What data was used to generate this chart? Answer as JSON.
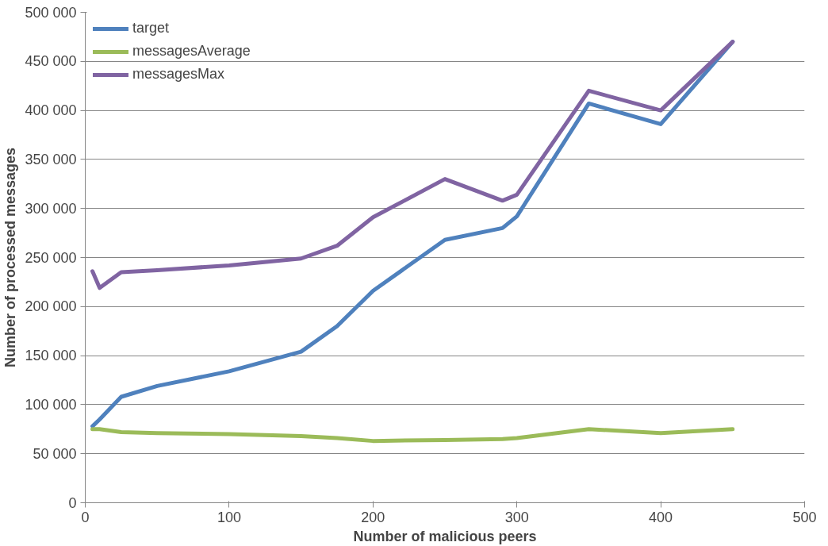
{
  "chart_data": {
    "type": "line",
    "xlabel": "Number of malicious peers",
    "ylabel": "Number of processed messages",
    "x": [
      5,
      10,
      25,
      50,
      100,
      150,
      175,
      200,
      250,
      290,
      300,
      350,
      400,
      450
    ],
    "series": [
      {
        "name": "target",
        "color": "#4f81bd",
        "values": [
          78000,
          85000,
          108000,
          119000,
          134000,
          154000,
          180000,
          216000,
          268000,
          280000,
          292000,
          407000,
          386000,
          470000
        ]
      },
      {
        "name": "messagesAverage",
        "color": "#9bbb59",
        "values": [
          75000,
          75000,
          72000,
          71000,
          70000,
          68000,
          66000,
          63000,
          64000,
          65000,
          66000,
          75000,
          71000,
          75000
        ]
      },
      {
        "name": "messagesMax",
        "color": "#8064a2",
        "values": [
          236000,
          219000,
          235000,
          237000,
          242000,
          249000,
          262000,
          291000,
          330000,
          308000,
          314000,
          420000,
          400000,
          470000
        ]
      }
    ],
    "xlim": [
      0,
      500
    ],
    "xticks": [
      0,
      100,
      200,
      300,
      400,
      500
    ],
    "ylim": [
      0,
      500000
    ],
    "yticks": [
      0,
      {
        "value": 50000,
        "label": "50 000"
      },
      {
        "value": 100000,
        "label": "100 000"
      },
      {
        "value": 150000,
        "label": "150 000"
      },
      {
        "value": 200000,
        "label": "200 000"
      },
      {
        "value": 250000,
        "label": "250 000"
      },
      {
        "value": 300000,
        "label": "300 000"
      },
      {
        "value": 350000,
        "label": "350 000"
      },
      {
        "value": 400000,
        "label": "400 000"
      },
      {
        "value": 450000,
        "label": "450 000"
      },
      {
        "value": 500000,
        "label": "500 000"
      }
    ],
    "grid": "y",
    "legend": "top left",
    "marker": "none",
    "line_style": "solid"
  }
}
